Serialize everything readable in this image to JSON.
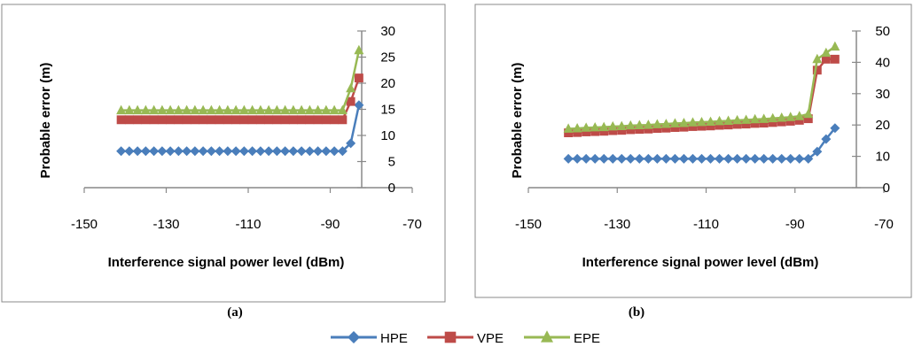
{
  "chart_data": [
    {
      "type": "line",
      "panel_label": "(a)",
      "xlabel": "Interference signal power level (dBm)",
      "ylabel": "Probable error (m)",
      "xlim": [
        -150,
        -70
      ],
      "ylim": [
        0,
        30
      ],
      "xticks": [
        "-150",
        "-130",
        "-110",
        "-90",
        "-70"
      ],
      "yticks": [
        "0",
        "5",
        "10",
        "15",
        "20",
        "25",
        "30"
      ],
      "x": [
        -141,
        -139,
        -137,
        -135,
        -133,
        -131,
        -129,
        -127,
        -125,
        -123,
        -121,
        -119,
        -117,
        -115,
        -113,
        -111,
        -109,
        -107,
        -105,
        -103,
        -101,
        -99,
        -97,
        -95,
        -93,
        -91,
        -89,
        -87,
        -85,
        -83
      ],
      "series": [
        {
          "name": "HPE",
          "color": "#4a7ebb",
          "marker": "diamond",
          "values": [
            7,
            7,
            7,
            7,
            7,
            7,
            7,
            7,
            7,
            7,
            7,
            7,
            7,
            7,
            7,
            7,
            7,
            7,
            7,
            7,
            7,
            7,
            7,
            7,
            7,
            7,
            7,
            7,
            8.5,
            15.8
          ]
        },
        {
          "name": "VPE",
          "color": "#be4b48",
          "marker": "square",
          "values": [
            13,
            13,
            13,
            13,
            13,
            13,
            13,
            13,
            13,
            13,
            13,
            13,
            13,
            13,
            13,
            13,
            13,
            13,
            13,
            13,
            13,
            13,
            13,
            13,
            13,
            13,
            13,
            13,
            16.5,
            21
          ]
        },
        {
          "name": "EPE",
          "color": "#98b954",
          "marker": "triangle",
          "values": [
            14.8,
            14.8,
            14.8,
            14.8,
            14.8,
            14.8,
            14.8,
            14.8,
            14.8,
            14.8,
            14.8,
            14.8,
            14.8,
            14.8,
            14.8,
            14.8,
            14.8,
            14.8,
            14.8,
            14.8,
            14.8,
            14.8,
            14.8,
            14.8,
            14.8,
            14.8,
            14.8,
            14.8,
            19,
            26.3
          ]
        }
      ]
    },
    {
      "type": "line",
      "panel_label": "(b)",
      "xlabel": "Interference signal power level (dBm)",
      "ylabel": "Probable error (m)",
      "xlim": [
        -150,
        -70
      ],
      "ylim": [
        0,
        50
      ],
      "xticks": [
        "-150",
        "-130",
        "-110",
        "-90",
        "-70"
      ],
      "yticks": [
        "0",
        "10",
        "20",
        "30",
        "40",
        "50"
      ],
      "x": [
        -141,
        -139,
        -137,
        -135,
        -133,
        -131,
        -129,
        -127,
        -125,
        -123,
        -121,
        -119,
        -117,
        -115,
        -113,
        -111,
        -109,
        -107,
        -105,
        -103,
        -101,
        -99,
        -97,
        -95,
        -93,
        -91,
        -89,
        -87,
        -85,
        -83,
        -81
      ],
      "series": [
        {
          "name": "HPE",
          "color": "#4a7ebb",
          "marker": "diamond",
          "values": [
            9.2,
            9.2,
            9.2,
            9.2,
            9.2,
            9.2,
            9.2,
            9.2,
            9.2,
            9.2,
            9.2,
            9.2,
            9.2,
            9.2,
            9.2,
            9.2,
            9.2,
            9.2,
            9.2,
            9.2,
            9.2,
            9.2,
            9.2,
            9.2,
            9.2,
            9.2,
            9.2,
            9.2,
            11.5,
            15.5,
            19
          ]
        },
        {
          "name": "VPE",
          "color": "#be4b48",
          "marker": "square",
          "values": [
            17.5,
            17.6,
            17.8,
            17.9,
            18.0,
            18.2,
            18.3,
            18.5,
            18.6,
            18.7,
            18.9,
            19.0,
            19.2,
            19.3,
            19.5,
            19.6,
            19.7,
            19.9,
            20.0,
            20.2,
            20.3,
            20.5,
            20.6,
            20.8,
            21.0,
            21.2,
            21.5,
            22,
            37.5,
            41,
            41
          ]
        },
        {
          "name": "EPE",
          "color": "#98b954",
          "marker": "triangle",
          "values": [
            18.8,
            18.9,
            19.1,
            19.2,
            19.3,
            19.5,
            19.6,
            19.8,
            19.9,
            20.0,
            20.2,
            20.3,
            20.5,
            20.6,
            20.8,
            20.9,
            21.0,
            21.2,
            21.3,
            21.5,
            21.6,
            21.8,
            21.9,
            22.1,
            22.3,
            22.5,
            22.8,
            23.5,
            41,
            43,
            45
          ]
        }
      ]
    }
  ],
  "legend": [
    {
      "name": "HPE",
      "color": "#4a7ebb",
      "marker": "diamond"
    },
    {
      "name": "VPE",
      "color": "#be4b48",
      "marker": "square"
    },
    {
      "name": "EPE",
      "color": "#98b954",
      "marker": "triangle"
    }
  ]
}
